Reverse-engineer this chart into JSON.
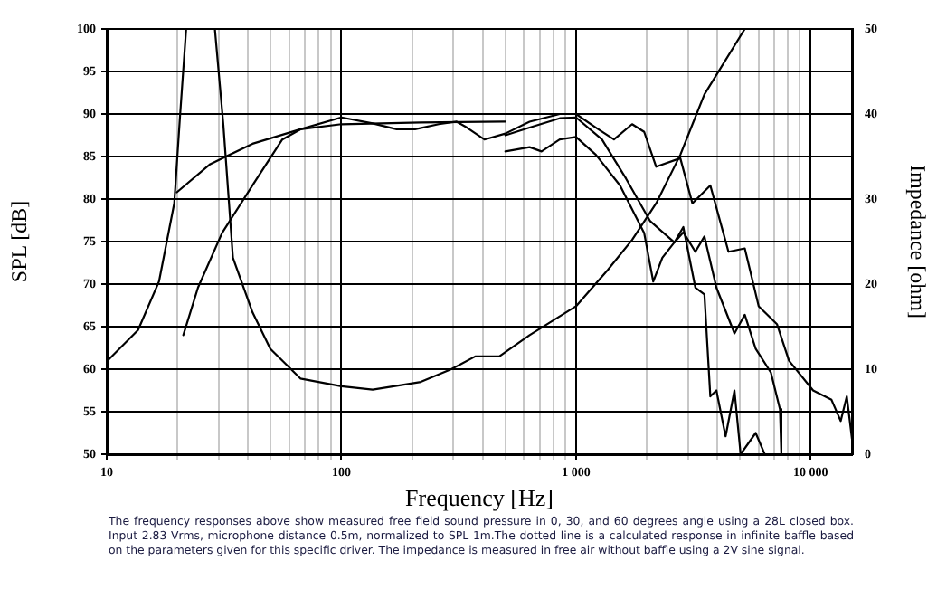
{
  "chart_data": {
    "type": "line",
    "xlabel": "Frequency [Hz]",
    "ylabel": "SPL [dB]",
    "y2label": "Impedance [ohm]",
    "log": "x",
    "grid": true,
    "legend": false,
    "marker": "none",
    "line_style": "solid",
    "xlim": [
      10,
      15000
    ],
    "xticks": [
      10,
      {
        "value": 20,
        "label": null
      },
      {
        "value": 30,
        "label": null
      },
      {
        "value": 40,
        "label": null
      },
      {
        "value": 50,
        "label": null
      },
      {
        "value": 60,
        "label": null
      },
      {
        "value": 70,
        "label": null
      },
      {
        "value": 80,
        "label": null
      },
      {
        "value": 90,
        "label": null
      },
      100,
      {
        "value": 200,
        "label": null
      },
      {
        "value": 300,
        "label": null
      },
      {
        "value": 400,
        "label": null
      },
      {
        "value": 500,
        "label": null
      },
      {
        "value": 600,
        "label": null
      },
      {
        "value": 700,
        "label": null
      },
      {
        "value": 800,
        "label": null
      },
      {
        "value": 900,
        "label": null
      },
      {
        "value": 1000,
        "label": "1 000"
      },
      {
        "value": 2000,
        "label": null
      },
      {
        "value": 3000,
        "label": null
      },
      {
        "value": 4000,
        "label": null
      },
      {
        "value": 5000,
        "label": null
      },
      {
        "value": 6000,
        "label": null
      },
      {
        "value": 7000,
        "label": null
      },
      {
        "value": 8000,
        "label": null
      },
      {
        "value": 9000,
        "label": null
      },
      {
        "value": 10000,
        "label": "10 000"
      }
    ],
    "ylim": [
      50,
      100
    ],
    "yticks": [
      50,
      55,
      60,
      65,
      70,
      75,
      80,
      85,
      90,
      95,
      100
    ],
    "y2lim": [
      0,
      50
    ],
    "y2ticks": [
      0,
      10,
      20,
      30,
      40,
      50
    ],
    "series": [
      {
        "color": "#000000",
        "axis": "y2",
        "x": [
          10,
          13.6,
          16.7,
          19.4,
          20.5,
          21.8,
          28.9,
          31.4,
          34.5,
          41.8,
          49.8,
          66.9,
          100,
          136,
          218,
          294,
          372,
          471,
          634,
          1000,
          1369,
          1734,
          2196,
          2783,
          3525,
          5239
        ],
        "values": [
          10.9,
          14.6,
          20.3,
          29.5,
          39.5,
          50,
          50,
          38.8,
          23.1,
          16.7,
          12.4,
          8.9,
          8.0,
          7.6,
          8.5,
          10.0,
          11.5,
          11.5,
          14.0,
          17.4,
          21.7,
          25.2,
          29.5,
          35.2,
          42.3,
          50
        ]
      },
      {
        "color": "#000000",
        "x": [
          19.9,
          27.6,
          41.8,
          66.9,
          100,
          218,
          500
        ],
        "values": [
          80.8,
          84.1,
          86.5,
          88.2,
          88.8,
          89.0,
          89.1
        ]
      },
      {
        "color": "#000000",
        "x": [
          21.2,
          24.5,
          31,
          41.8,
          56,
          66.9,
          100,
          136,
          172,
          206,
          260,
          310,
          343,
          407,
          500,
          634,
          852,
          1000,
          1216,
          1451,
          1734,
          1952,
          2196,
          2783,
          3133,
          3736,
          4465,
          5239,
          6006,
          7183,
          8085,
          10245,
          12270,
          13430,
          14260,
          15000
        ],
        "values": [
          64.0,
          69.6,
          76.0,
          81.6,
          87.0,
          88.2,
          89.6,
          88.9,
          88.2,
          88.2,
          88.8,
          89.1,
          88.4,
          87.0,
          87.7,
          89.1,
          90.0,
          90.0,
          88.4,
          87.0,
          88.8,
          87.9,
          83.8,
          84.8,
          79.5,
          81.6,
          73.8,
          74.2,
          67.4,
          65.3,
          61.0,
          57.5,
          56.4,
          53.9,
          56.8,
          51.8
        ]
      },
      {
        "color": "#000000",
        "x": [
          500,
          634,
          852,
          1000,
          1290,
          1634,
          2071,
          2625,
          2866,
          3225,
          3525,
          3965,
          4734,
          5239,
          5830,
          6770,
          7400,
          7500
        ],
        "values": [
          87.5,
          88.4,
          89.5,
          89.6,
          87.0,
          82.4,
          77.4,
          74.9,
          76.1,
          73.8,
          75.6,
          69.6,
          64.2,
          66.4,
          62.4,
          59.6,
          55.3,
          50
        ]
      },
      {
        "color": "#000000",
        "x": [
          500,
          634,
          713,
          852,
          1000,
          1216,
          1540,
          1952,
          2134,
          2333,
          2625,
          2866,
          3225,
          3525,
          3736,
          3965,
          4340,
          4734,
          5030,
          5830,
          6370
        ],
        "values": [
          85.6,
          86.1,
          85.6,
          87.0,
          87.3,
          85.2,
          81.6,
          76.0,
          70.3,
          73.1,
          74.9,
          76.7,
          69.6,
          68.8,
          56.8,
          57.5,
          52.1,
          57.5,
          50,
          52.5,
          50
        ]
      }
    ],
    "annotations": [
      "The frequency responses above show measured free field sound pressure in 0, 30, and 60 degrees angle using a 28L closed box. Input 2.83 Vrms, microphone distance 0.5m, normalized to SPL 1m.The dotted line is a calculated response in infinite baffle based on the parameters given for this specific driver. The impedance is measured in free air without baffle using a 2V sine signal."
    ]
  }
}
